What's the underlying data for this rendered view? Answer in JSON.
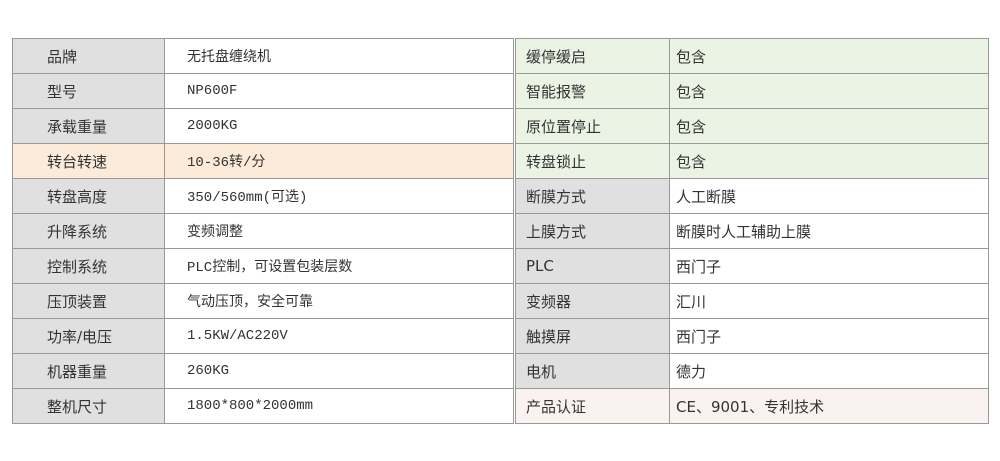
{
  "left_rows": [
    {
      "label": "品牌",
      "value": "无托盘缠绕机"
    },
    {
      "label": "型号",
      "value": "NP600F"
    },
    {
      "label": "承载重量",
      "value": "2000KG"
    },
    {
      "label": "转台转速",
      "value": "10-36转/分",
      "highlight": "#fcebd9"
    },
    {
      "label": "转盘高度",
      "value": "350/560mm(可选)"
    },
    {
      "label": "升降系统",
      "value": "变频调整"
    },
    {
      "label": "控制系统",
      "value": "PLC控制，可设置包装层数"
    },
    {
      "label": "压顶装置",
      "value": "气动压顶，安全可靠"
    },
    {
      "label": "功率/电压",
      "value": "1.5KW/AC220V"
    },
    {
      "label": "机器重量",
      "value": "260KG"
    },
    {
      "label": "整机尺寸",
      "value": "1800*800*2000mm"
    }
  ],
  "right_rows": [
    {
      "label": "缓停缓启",
      "value": "包含",
      "highlight": "#ebf3e4"
    },
    {
      "label": "智能报警",
      "value": "包含",
      "highlight": "#ebf3e4"
    },
    {
      "label": "原位置停止",
      "value": "包含",
      "highlight": "#ebf3e4"
    },
    {
      "label": "转盘锁止",
      "value": "包含",
      "highlight": "#ebf3e4"
    },
    {
      "label": "断膜方式",
      "value": "人工断膜"
    },
    {
      "label": "上膜方式",
      "value": "断膜时人工辅助上膜"
    },
    {
      "label": "PLC",
      "value": "西门子"
    },
    {
      "label": "变频器",
      "value": "汇川"
    },
    {
      "label": "触摸屏",
      "value": "西门子"
    },
    {
      "label": "电机",
      "value": "德力"
    },
    {
      "label": "产品认证",
      "value": "CE、9001、专利技术",
      "highlight": "#f9f2f1"
    }
  ]
}
